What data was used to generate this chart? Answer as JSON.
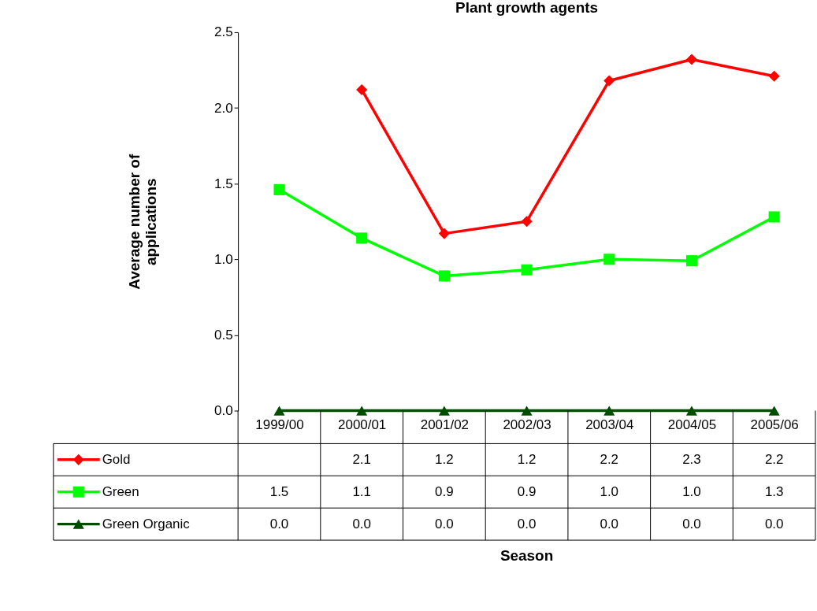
{
  "chart_data": {
    "type": "line",
    "title": "Plant growth agents",
    "annotations": [
      "Season"
    ],
    "legend": "bottom",
    "ylabel": "Average number of applications",
    "categories": [
      "1999/00",
      "2000/01",
      "2001/02",
      "2002/03",
      "2003/04",
      "2004/05",
      "2005/06"
    ],
    "ylim": [
      0,
      2.5
    ],
    "yticks": [
      {
        "value": 0,
        "label": "0.0"
      },
      {
        "value": 0.5,
        "label": "0.5"
      },
      {
        "value": 1,
        "label": "1.0"
      },
      {
        "value": 1.5,
        "label": "1.5"
      },
      {
        "value": 2,
        "label": "2.0"
      },
      {
        "value": 2.5,
        "label": "2.5"
      }
    ],
    "series": [
      {
        "name": "Gold",
        "color": "#ff0000",
        "marker": "diamond",
        "values": [
          null,
          2.12,
          1.17,
          1.25,
          2.18,
          2.32,
          2.21
        ],
        "value_labels": [
          null,
          "2.1",
          "1.2",
          "1.2",
          "2.2",
          "2.3",
          "2.2"
        ]
      },
      {
        "name": "Green",
        "color": "#00ff00",
        "marker": "square",
        "values": [
          1.46,
          1.14,
          0.89,
          0.93,
          1.0,
          0.99,
          1.28
        ],
        "value_labels": [
          "1.5",
          "1.1",
          "0.9",
          "0.9",
          "1.0",
          "1.0",
          "1.3"
        ]
      },
      {
        "name": "Green Organic",
        "color": "#004d00",
        "marker": "triangle",
        "values": [
          0,
          0,
          0,
          0,
          0,
          0,
          0
        ],
        "value_labels": [
          "0.0",
          "0.0",
          "0.0",
          "0.0",
          "0.0",
          "0.0",
          "0.0"
        ]
      }
    ]
  }
}
